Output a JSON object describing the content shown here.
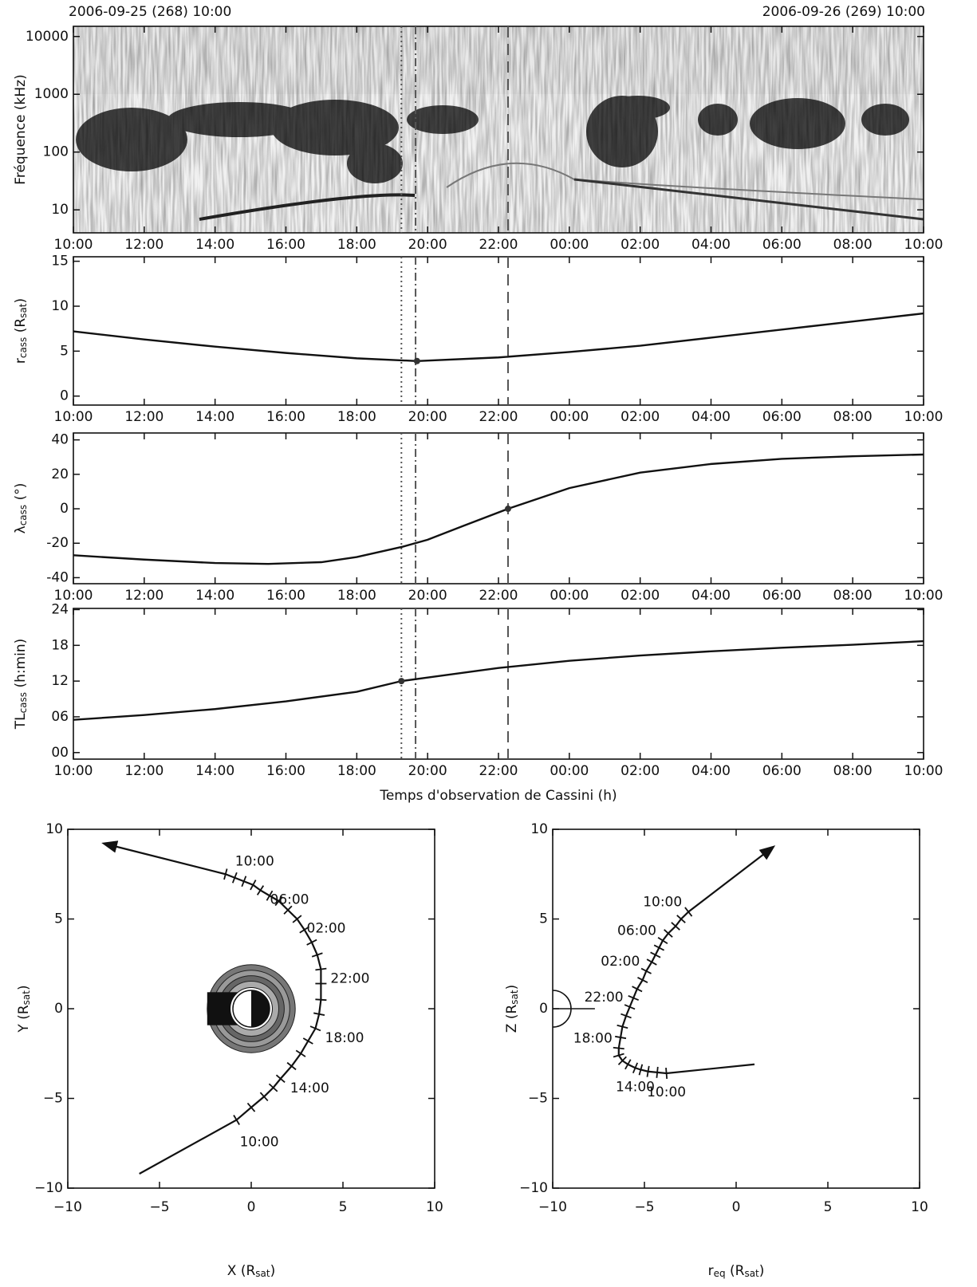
{
  "chart_data": [
    {
      "type": "spectrogram",
      "start_label": "2006-09-25 (268) 10:00",
      "end_label": "2006-09-26 (269) 10:00",
      "ylabel": [
        "Fréquence (kHz)"
      ],
      "log": true,
      "ylim": [
        4,
        15000
      ],
      "yticks": [
        10,
        100,
        1000,
        10000
      ],
      "xlim": [
        0,
        24
      ],
      "xticks": [
        {
          "value": 0,
          "label": "10:00"
        },
        {
          "value": 2,
          "label": "12:00"
        },
        {
          "value": 4,
          "label": "14:00"
        },
        {
          "value": 6,
          "label": "16:00"
        },
        {
          "value": 8,
          "label": "18:00"
        },
        {
          "value": 10,
          "label": "20:00"
        },
        {
          "value": 12,
          "label": "22:00"
        },
        {
          "value": 14,
          "label": "00:00"
        },
        {
          "value": 16,
          "label": "02:00"
        },
        {
          "value": 18,
          "label": "04:00"
        },
        {
          "value": 20,
          "label": "06:00"
        },
        {
          "value": 22,
          "label": "08:00"
        },
        {
          "value": 24,
          "label": "10:00"
        }
      ],
      "markers": [
        {
          "x": 9.26,
          "style": "dotted"
        },
        {
          "x": 9.66,
          "style": "dashdot"
        },
        {
          "x": 12.27,
          "style": "dashed"
        }
      ]
    },
    {
      "type": "line",
      "ylabel": [
        "r",
        "cass",
        " (R",
        "sat",
        ")"
      ],
      "ylim": [
        -1,
        15.5
      ],
      "yticks": [
        0,
        5,
        10,
        15
      ],
      "xlim": [
        0,
        24
      ],
      "xticks": [
        {
          "value": 0,
          "label": "10:00"
        },
        {
          "value": 2,
          "label": "12:00"
        },
        {
          "value": 4,
          "label": "14:00"
        },
        {
          "value": 6,
          "label": "16:00"
        },
        {
          "value": 8,
          "label": "18:00"
        },
        {
          "value": 10,
          "label": "20:00"
        },
        {
          "value": 12,
          "label": "22:00"
        },
        {
          "value": 14,
          "label": "00:00"
        },
        {
          "value": 16,
          "label": "02:00"
        },
        {
          "value": 18,
          "label": "04:00"
        },
        {
          "value": 20,
          "label": "06:00"
        },
        {
          "value": 22,
          "label": "08:00"
        },
        {
          "value": 24,
          "label": "10:00"
        }
      ],
      "x": [
        0,
        2,
        4,
        6,
        8,
        9.7,
        12,
        14,
        16,
        18,
        20,
        22,
        24
      ],
      "values": [
        7.2,
        6.3,
        5.5,
        4.8,
        4.2,
        3.9,
        4.3,
        4.9,
        5.6,
        6.5,
        7.4,
        8.3,
        9.2
      ],
      "highlight": {
        "x": 9.7,
        "y": 3.9
      },
      "markers": [
        {
          "x": 9.26,
          "style": "dotted"
        },
        {
          "x": 9.66,
          "style": "dashdot"
        },
        {
          "x": 12.27,
          "style": "dashed"
        }
      ]
    },
    {
      "type": "line",
      "ylabel": [
        "λ",
        "cass",
        " (°)"
      ],
      "ylim": [
        -43.5,
        44
      ],
      "yticks": [
        -40,
        -20,
        0,
        20,
        40
      ],
      "xlim": [
        0,
        24
      ],
      "xticks": [
        {
          "value": 0,
          "label": "10:00"
        },
        {
          "value": 2,
          "label": "12:00"
        },
        {
          "value": 4,
          "label": "14:00"
        },
        {
          "value": 6,
          "label": "16:00"
        },
        {
          "value": 8,
          "label": "18:00"
        },
        {
          "value": 10,
          "label": "20:00"
        },
        {
          "value": 12,
          "label": "22:00"
        },
        {
          "value": 14,
          "label": "00:00"
        },
        {
          "value": 16,
          "label": "02:00"
        },
        {
          "value": 18,
          "label": "04:00"
        },
        {
          "value": 20,
          "label": "06:00"
        },
        {
          "value": 22,
          "label": "08:00"
        },
        {
          "value": 24,
          "label": "10:00"
        }
      ],
      "x": [
        0,
        2,
        4,
        5.5,
        7,
        8,
        9.3,
        10,
        11,
        12.27,
        14,
        16,
        18,
        20,
        22,
        24
      ],
      "values": [
        -27,
        -29.5,
        -31.5,
        -32,
        -31,
        -28,
        -22,
        -18,
        -10,
        0,
        12,
        21,
        26,
        29,
        30.5,
        31.5
      ],
      "highlight": {
        "x": 12.27,
        "y": 0
      },
      "markers": [
        {
          "x": 9.26,
          "style": "dotted"
        },
        {
          "x": 9.66,
          "style": "dashdot"
        },
        {
          "x": 12.27,
          "style": "dashed"
        }
      ]
    },
    {
      "type": "line",
      "ylabel": [
        "TL",
        "cass",
        " (h:min)"
      ],
      "ylim": [
        -1.1,
        24.2
      ],
      "yticks": [
        {
          "value": 0,
          "label": "00"
        },
        {
          "value": 6,
          "label": "06"
        },
        12,
        18,
        24
      ],
      "xlabel": "Temps d'observation de Cassini (h)",
      "xlim": [
        0,
        24
      ],
      "xticks": [
        {
          "value": 0,
          "label": "10:00"
        },
        {
          "value": 2,
          "label": "12:00"
        },
        {
          "value": 4,
          "label": "14:00"
        },
        {
          "value": 6,
          "label": "16:00"
        },
        {
          "value": 8,
          "label": "18:00"
        },
        {
          "value": 10,
          "label": "20:00"
        },
        {
          "value": 12,
          "label": "22:00"
        },
        {
          "value": 14,
          "label": "00:00"
        },
        {
          "value": 16,
          "label": "02:00"
        },
        {
          "value": 18,
          "label": "04:00"
        },
        {
          "value": 20,
          "label": "06:00"
        },
        {
          "value": 22,
          "label": "08:00"
        },
        {
          "value": 24,
          "label": "10:00"
        }
      ],
      "x": [
        0,
        2,
        4,
        6,
        8,
        9.26,
        10,
        12,
        14,
        16,
        18,
        20,
        22,
        24
      ],
      "values": [
        5.5,
        6.3,
        7.3,
        8.6,
        10.2,
        12,
        12.6,
        14.2,
        15.4,
        16.3,
        17.0,
        17.6,
        18.1,
        18.7
      ],
      "highlight": {
        "x": 9.26,
        "y": 12
      },
      "markers": [
        {
          "x": 9.26,
          "style": "dotted"
        },
        {
          "x": 9.66,
          "style": "dashdot"
        },
        {
          "x": 12.27,
          "style": "dashed"
        }
      ]
    },
    {
      "type": "trajectory",
      "xlabel": [
        "X (R",
        "sat",
        ")"
      ],
      "ylabel": [
        "Y (R",
        "sat",
        ")"
      ],
      "body": "full",
      "xlim": [
        -10,
        10
      ],
      "ylim": [
        -10,
        10
      ],
      "xticks": [
        {
          "value": -10,
          "label": "−10"
        },
        {
          "value": -5,
          "label": "−5"
        },
        0,
        5,
        10
      ],
      "yticks": [
        {
          "value": -10,
          "label": "−10"
        },
        {
          "value": -5,
          "label": "−5"
        },
        0,
        5,
        10
      ],
      "x": [
        -6.1,
        -0.8,
        0.0,
        0.7,
        1.2,
        1.6,
        2.2,
        2.7,
        3.1,
        3.5,
        3.7,
        3.8,
        3.8,
        3.8,
        3.6,
        3.3,
        2.9,
        2.5,
        2.0,
        1.5,
        1.0,
        0.5,
        0.1,
        -0.4,
        -0.9,
        -1.4,
        -8.0
      ],
      "y": [
        -9.2,
        -6.2,
        -5.5,
        -4.9,
        -4.4,
        -3.9,
        -3.2,
        -2.5,
        -1.8,
        -1.1,
        -0.3,
        0.5,
        1.4,
        2.2,
        3.0,
        3.7,
        4.4,
        5.0,
        5.5,
        6.0,
        6.3,
        6.6,
        6.9,
        7.1,
        7.3,
        7.5,
        9.2
      ],
      "time_marks": [
        {
          "label": "10:00",
          "x": -0.8,
          "y": -6.2
        },
        {
          "label": "14:00",
          "x": 1.6,
          "y": -3.9
        },
        {
          "label": "18:00",
          "x": 3.5,
          "y": -1.1
        },
        {
          "label": "22:00",
          "x": 3.8,
          "y": 2.2
        },
        {
          "label": "02:00",
          "x": 2.5,
          "y": 5.0
        },
        {
          "label": "06:00",
          "x": 0.5,
          "y": 6.6
        },
        {
          "label": "10:00",
          "x": -1.4,
          "y": 7.5
        }
      ]
    },
    {
      "type": "trajectory",
      "xlabel": [
        "r",
        "eq",
        " (R",
        "sat",
        ")"
      ],
      "ylabel": [
        "Z (R",
        "sat",
        ")"
      ],
      "body": "half",
      "xlim": [
        -10,
        10
      ],
      "ylim": [
        -10,
        10
      ],
      "xticks": [
        {
          "value": -10,
          "label": "−10"
        },
        {
          "value": -5,
          "label": "−5"
        },
        0,
        5,
        10
      ],
      "yticks": [
        {
          "value": -10,
          "label": "−10"
        },
        {
          "value": -5,
          "label": "−5"
        },
        0,
        5,
        10
      ],
      "x": [
        1.0,
        -3.8,
        -4.3,
        -4.8,
        -5.2,
        -5.5,
        -5.9,
        -6.2,
        -6.4,
        -6.4,
        -6.3,
        -6.2,
        -6.0,
        -5.8,
        -5.6,
        -5.4,
        -5.1,
        -4.9,
        -4.6,
        -4.4,
        -4.2,
        -4.0,
        -3.7,
        -3.3,
        -3.0,
        -2.6,
        2.0
      ],
      "y": [
        -3.1,
        -3.6,
        -3.55,
        -3.5,
        -3.4,
        -3.3,
        -3.1,
        -2.9,
        -2.6,
        -2.2,
        -1.6,
        -1.0,
        -0.4,
        0.1,
        0.6,
        1.1,
        1.6,
        2.1,
        2.6,
        3.0,
        3.4,
        3.8,
        4.2,
        4.6,
        5.0,
        5.4,
        9.0
      ],
      "time_marks": [
        {
          "label": "10:00",
          "x": -3.8,
          "y": -3.6
        },
        {
          "label": "14:00",
          "x": -5.5,
          "y": -3.3
        },
        {
          "label": "18:00",
          "x": -6.4,
          "y": -2.2
        },
        {
          "label": "22:00",
          "x": -5.8,
          "y": 0.1
        },
        {
          "label": "02:00",
          "x": -4.9,
          "y": 2.1
        },
        {
          "label": "06:00",
          "x": -4.0,
          "y": 3.8
        },
        {
          "label": "10:00",
          "x": -2.6,
          "y": 5.4
        }
      ]
    }
  ]
}
